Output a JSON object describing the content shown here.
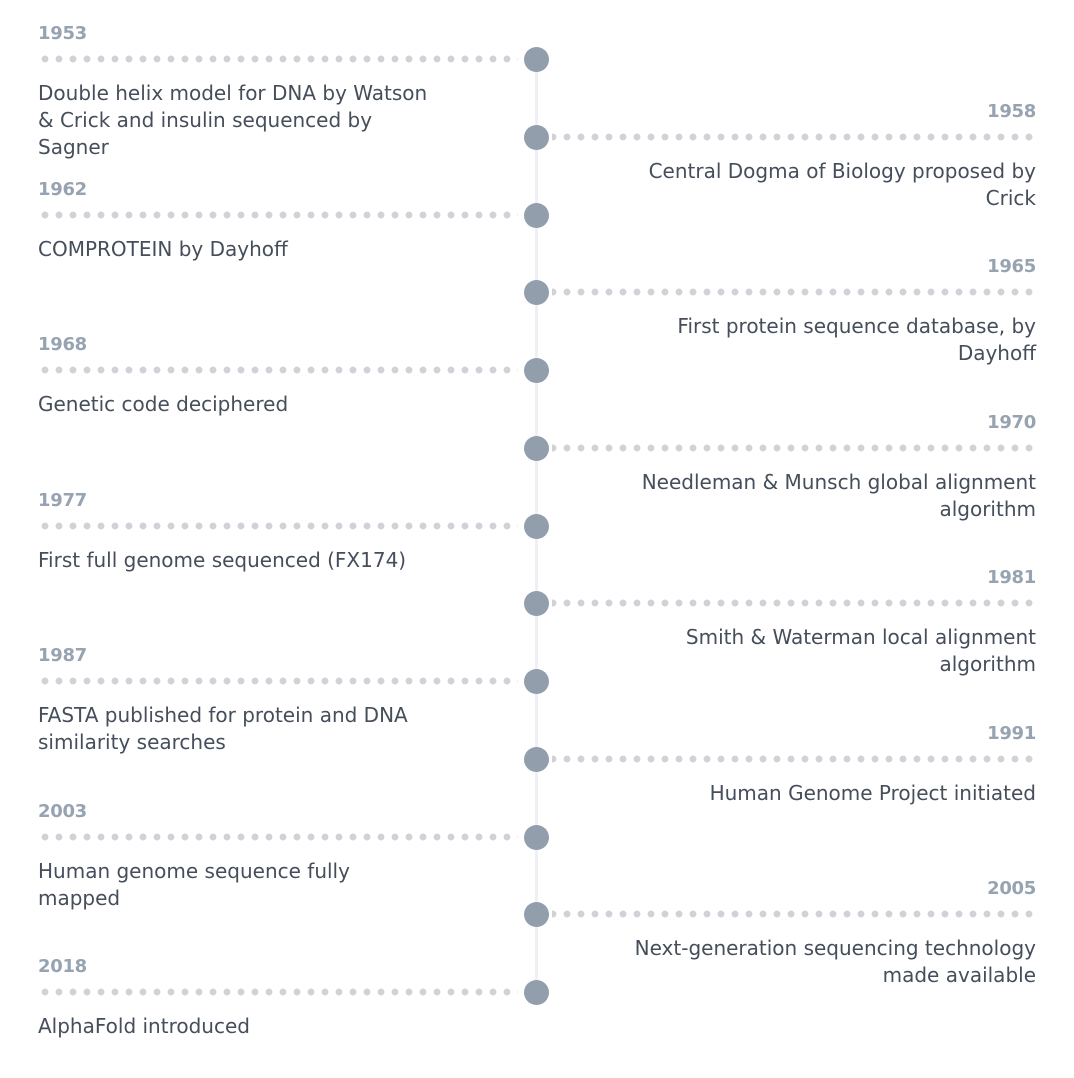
{
  "timeline": {
    "events": [
      {
        "year": "1953",
        "description": "Double helix model for DNA by Watson & Crick and insulin sequenced by Sagner"
      },
      {
        "year": "1958",
        "description": "Central Dogma of Biology proposed by Crick"
      },
      {
        "year": "1962",
        "description": "COMPROTEIN by Dayhoff"
      },
      {
        "year": "1965",
        "description": "First protein sequence database, by Dayhoff"
      },
      {
        "year": "1968",
        "description": "Genetic code deciphered"
      },
      {
        "year": "1970",
        "description": "Needleman & Munsch global alignment algorithm"
      },
      {
        "year": "1977",
        "description": "First full genome sequenced (FX174)"
      },
      {
        "year": "1981",
        "description": "Smith & Waterman local alignment algorithm"
      },
      {
        "year": "1987",
        "description": "FASTA published for protein and DNA similarity searches"
      },
      {
        "year": "1991",
        "description": "Human Genome Project initiated"
      },
      {
        "year": "2003",
        "description": "Human genome sequence fully mapped"
      },
      {
        "year": "2005",
        "description": "Next-generation sequencing technology made available"
      },
      {
        "year": "2018",
        "description": "AlphaFold introduced"
      }
    ]
  }
}
